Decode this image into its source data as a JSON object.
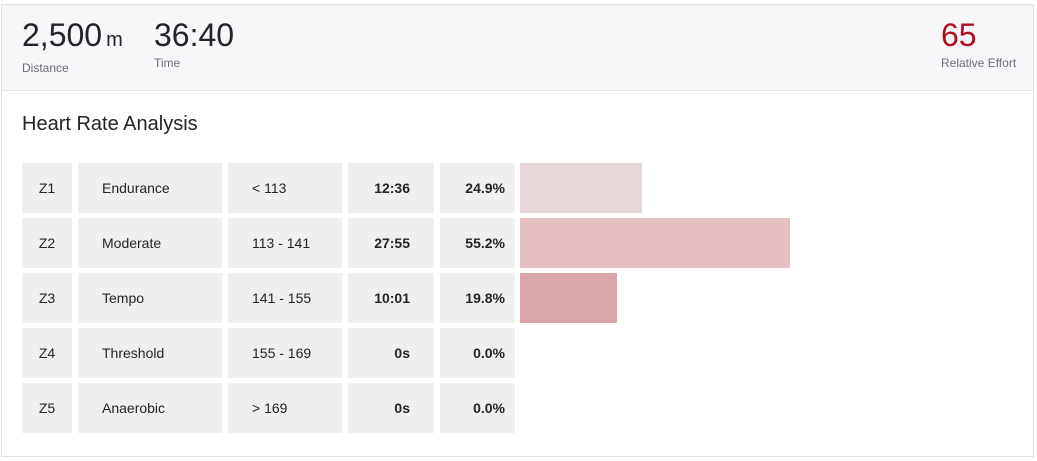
{
  "stats": {
    "distance": {
      "value": "2,500",
      "unit": "m",
      "label": "Distance"
    },
    "time": {
      "value": "36:40",
      "label": "Time"
    },
    "relative_effort": {
      "value": "65",
      "label": "Relative Effort"
    }
  },
  "heart_rate": {
    "title": "Heart Rate Analysis",
    "max_percentage": 55.2,
    "zones": [
      {
        "zone": "Z1",
        "name": "Endurance",
        "range": "< 113",
        "time": "12:36",
        "percent": "24.9%",
        "percent_value": 24.9,
        "bar_color": "#e6d6d7"
      },
      {
        "zone": "Z2",
        "name": "Moderate",
        "range": "113 - 141",
        "time": "27:55",
        "percent": "55.2%",
        "percent_value": 55.2,
        "bar_color": "#e5bfc1"
      },
      {
        "zone": "Z3",
        "name": "Tempo",
        "range": "141 - 155",
        "time": "10:01",
        "percent": "19.8%",
        "percent_value": 19.8,
        "bar_color": "#d8a5a8"
      },
      {
        "zone": "Z4",
        "name": "Threshold",
        "range": "155 - 169",
        "time": "0s",
        "percent": "0.0%",
        "percent_value": 0,
        "bar_color": "#c98a8e"
      },
      {
        "zone": "Z5",
        "name": "Anaerobic",
        "range": "> 169",
        "time": "0s",
        "percent": "0.0%",
        "percent_value": 0,
        "bar_color": "#b86f74"
      }
    ]
  }
}
